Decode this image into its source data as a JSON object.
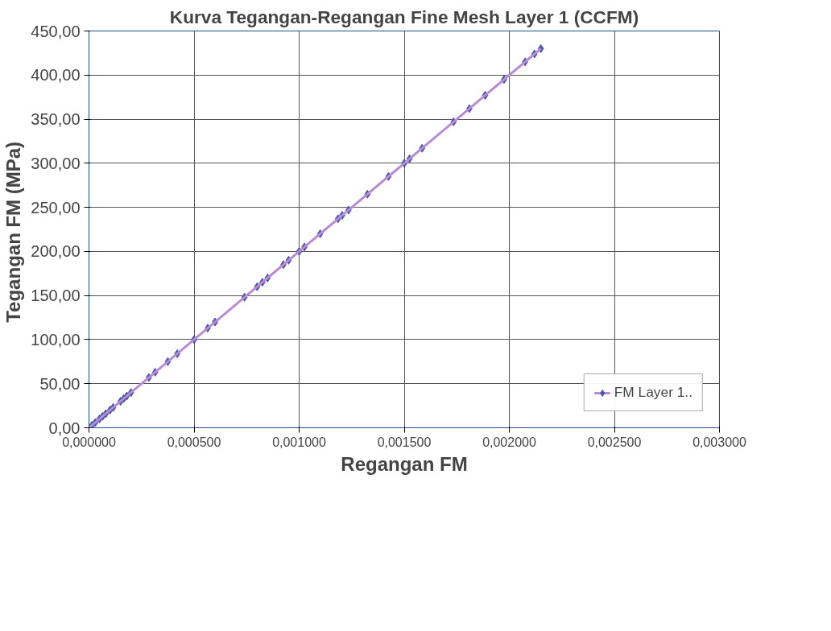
{
  "chart_data": {
    "type": "line",
    "title": "Kurva Tegangan-Regangan Fine Mesh Layer 1 (CCFM)",
    "xlabel": "Regangan FM",
    "ylabel": "Tegangan  FM (MPa)",
    "xlim": [
      0,
      0.003
    ],
    "ylim": [
      0,
      450
    ],
    "xticks": [
      {
        "value": 0,
        "label": "0,000000"
      },
      {
        "value": 0.0005,
        "label": "0,000500"
      },
      {
        "value": 0.001,
        "label": "0,001000"
      },
      {
        "value": 0.0015,
        "label": "0,001500"
      },
      {
        "value": 0.002,
        "label": "0,002000"
      },
      {
        "value": 0.0025,
        "label": "0,002500"
      },
      {
        "value": 0.003,
        "label": "0,003000"
      }
    ],
    "yticks": [
      {
        "value": 0,
        "label": "0,00"
      },
      {
        "value": 50,
        "label": "50,00"
      },
      {
        "value": 100,
        "label": "100,00"
      },
      {
        "value": 150,
        "label": "150,00"
      },
      {
        "value": 200,
        "label": "200,00"
      },
      {
        "value": 250,
        "label": "250,00"
      },
      {
        "value": 300,
        "label": "300,00"
      },
      {
        "value": 350,
        "label": "350,00"
      },
      {
        "value": 400,
        "label": "400,00"
      },
      {
        "value": 450,
        "label": "450,00"
      }
    ],
    "grid": true,
    "legend": "bottom right",
    "marker": "diamond",
    "line_style": "solid",
    "series": [
      {
        "name": "FM Layer 1..",
        "color": "#4a5aaa",
        "x": [
          0,
          1.5e-05,
          3e-05,
          5e-05,
          6.5e-05,
          8e-05,
          0.0001,
          0.000115,
          0.00015,
          0.000165,
          0.00018,
          0.0002,
          0.000285,
          0.000315,
          0.000375,
          0.00042,
          0.0005,
          0.000565,
          0.0006,
          0.00074,
          0.0008,
          0.000825,
          0.00085,
          0.000925,
          0.00095,
          0.001,
          0.001025,
          0.0011,
          0.001185,
          0.001205,
          0.001235,
          0.001325,
          0.001425,
          0.0015,
          0.001525,
          0.001585,
          0.001735,
          0.00181,
          0.001885,
          0.001975,
          0.002075,
          0.00212,
          0.00215
        ],
        "values": [
          0,
          3,
          6,
          10,
          13,
          16,
          20,
          23,
          30,
          33,
          36,
          40,
          57,
          63,
          75,
          84,
          100,
          113,
          120,
          148,
          160,
          165,
          170,
          185,
          190,
          200,
          205,
          220,
          237,
          241,
          247,
          265,
          285,
          300,
          305,
          317,
          347,
          362,
          377,
          395,
          415,
          424,
          430
        ]
      }
    ]
  }
}
